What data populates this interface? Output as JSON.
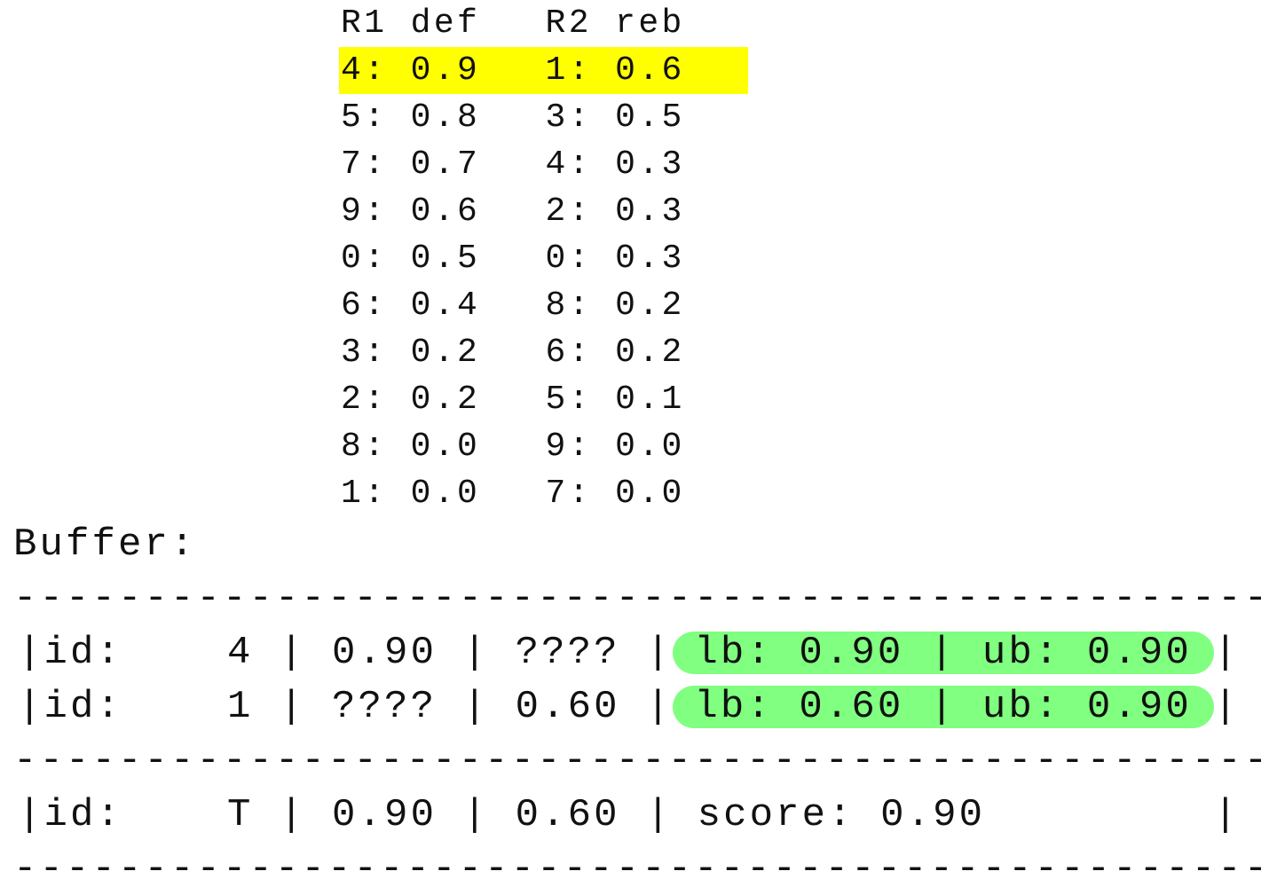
{
  "lists": [
    {
      "header": "R1 def",
      "rows": [
        "4: 0.9",
        "5: 0.8",
        "7: 0.7",
        "9: 0.6",
        "0: 0.5",
        "6: 0.4",
        "3: 0.2",
        "2: 0.2",
        "8: 0.0",
        "1: 0.0"
      ]
    },
    {
      "header": "R2 reb",
      "rows": [
        "1: 0.6",
        "3: 0.5",
        "4: 0.3",
        "2: 0.3",
        "0: 0.3",
        "8: 0.2",
        "6: 0.2",
        "5: 0.1",
        "9: 0.0",
        "7: 0.0"
      ]
    }
  ],
  "highlight_row": 0,
  "buffer": {
    "label": "Buffer:",
    "separator": "------------------------------------------------",
    "rows": [
      {
        "main": "|id:    4 | 0.90 | ???? |",
        "bounds": "lb: 0.90 | ub: 0.90",
        "end": "|"
      },
      {
        "main": "|id:    1 | ???? | 0.60 |",
        "bounds": "lb: 0.60 | ub: 0.90",
        "end": "|"
      }
    ],
    "threshold": {
      "main": "|id:    T | 0.90 | 0.60 |",
      "score": "score: 0.90",
      "end": "|"
    }
  }
}
